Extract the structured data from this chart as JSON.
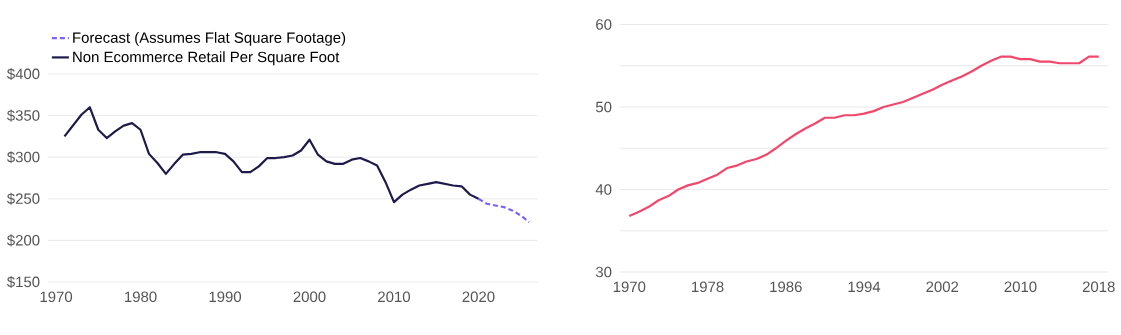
{
  "chart_data": [
    {
      "type": "line",
      "legend": "top left",
      "grid": "y",
      "xlim": [
        1969,
        2027
      ],
      "ylim": [
        150,
        400
      ],
      "xticks": [
        1970,
        1980,
        1990,
        2000,
        2010,
        2020
      ],
      "yticks": [
        {
          "value": 150,
          "label": "$150"
        },
        {
          "value": 200,
          "label": "$200"
        },
        {
          "value": 250,
          "label": "$250"
        },
        {
          "value": 300,
          "label": "$300"
        },
        {
          "value": 350,
          "label": "$350"
        },
        {
          "value": 400,
          "label": "$400"
        }
      ],
      "series": [
        {
          "name": "Forecast (Assumes Flat Square Footage)",
          "color": "#7b61ff",
          "line_style": "dashed",
          "x": [
            2020,
            2021,
            2022,
            2023,
            2024,
            2025,
            2026
          ],
          "values": [
            250,
            244,
            242,
            240,
            236,
            230,
            222
          ]
        },
        {
          "name": "Non Ecommerce Retail Per Square Foot",
          "color": "#1e1b4b",
          "line_style": "solid",
          "x": [
            1971,
            1972,
            1973,
            1974,
            1975,
            1976,
            1977,
            1978,
            1979,
            1980,
            1981,
            1982,
            1983,
            1984,
            1985,
            1986,
            1987,
            1988,
            1989,
            1990,
            1991,
            1992,
            1993,
            1994,
            1995,
            1996,
            1997,
            1998,
            1999,
            2000,
            2001,
            2002,
            2003,
            2004,
            2005,
            2006,
            2007,
            2008,
            2009,
            2010,
            2011,
            2012,
            2013,
            2014,
            2015,
            2016,
            2017,
            2018,
            2019,
            2020
          ],
          "values": [
            325,
            338,
            351,
            360,
            333,
            323,
            331,
            338,
            341,
            333,
            304,
            293,
            280,
            292,
            303,
            304,
            306,
            306,
            306,
            304,
            295,
            282,
            282,
            289,
            299,
            299,
            300,
            302,
            308,
            321,
            303,
            295,
            292,
            292,
            297,
            299,
            295,
            290,
            270,
            246,
            255,
            261,
            266,
            268,
            270,
            268,
            266,
            265,
            255,
            250
          ]
        }
      ]
    },
    {
      "type": "line",
      "grid": "y",
      "xlim": [
        1969,
        2019
      ],
      "ylim": [
        30,
        60
      ],
      "xticks": [
        1970,
        1978,
        1986,
        1994,
        2002,
        2010,
        2018
      ],
      "yticks": [
        30,
        {
          "value": 35,
          "label": null
        },
        40,
        {
          "value": 45,
          "label": null
        },
        50,
        {
          "value": 55,
          "label": null
        },
        60
      ],
      "series": [
        {
          "color": "#f0476a",
          "line_style": "solid",
          "x": [
            1970,
            1971,
            1972,
            1973,
            1974,
            1975,
            1976,
            1977,
            1978,
            1979,
            1980,
            1981,
            1982,
            1983,
            1984,
            1985,
            1986,
            1987,
            1988,
            1989,
            1990,
            1991,
            1992,
            1993,
            1994,
            1995,
            1996,
            1997,
            1998,
            1999,
            2000,
            2001,
            2002,
            2003,
            2004,
            2005,
            2006,
            2007,
            2008,
            2009,
            2010,
            2011,
            2012,
            2013,
            2014,
            2015,
            2016,
            2017,
            2018
          ],
          "values": [
            36.8,
            37.3,
            37.9,
            38.7,
            39.2,
            40.0,
            40.5,
            40.8,
            41.3,
            41.8,
            42.6,
            42.9,
            43.4,
            43.7,
            44.2,
            45.0,
            45.9,
            46.7,
            47.4,
            48.0,
            48.7,
            48.7,
            49.0,
            49.0,
            49.2,
            49.5,
            50.0,
            50.3,
            50.6,
            51.1,
            51.6,
            52.1,
            52.7,
            53.2,
            53.7,
            54.3,
            55.0,
            55.6,
            56.1,
            56.1,
            55.8,
            55.8,
            55.5,
            55.5,
            55.3,
            55.3,
            55.3,
            56.1,
            56.1
          ]
        }
      ]
    }
  ]
}
